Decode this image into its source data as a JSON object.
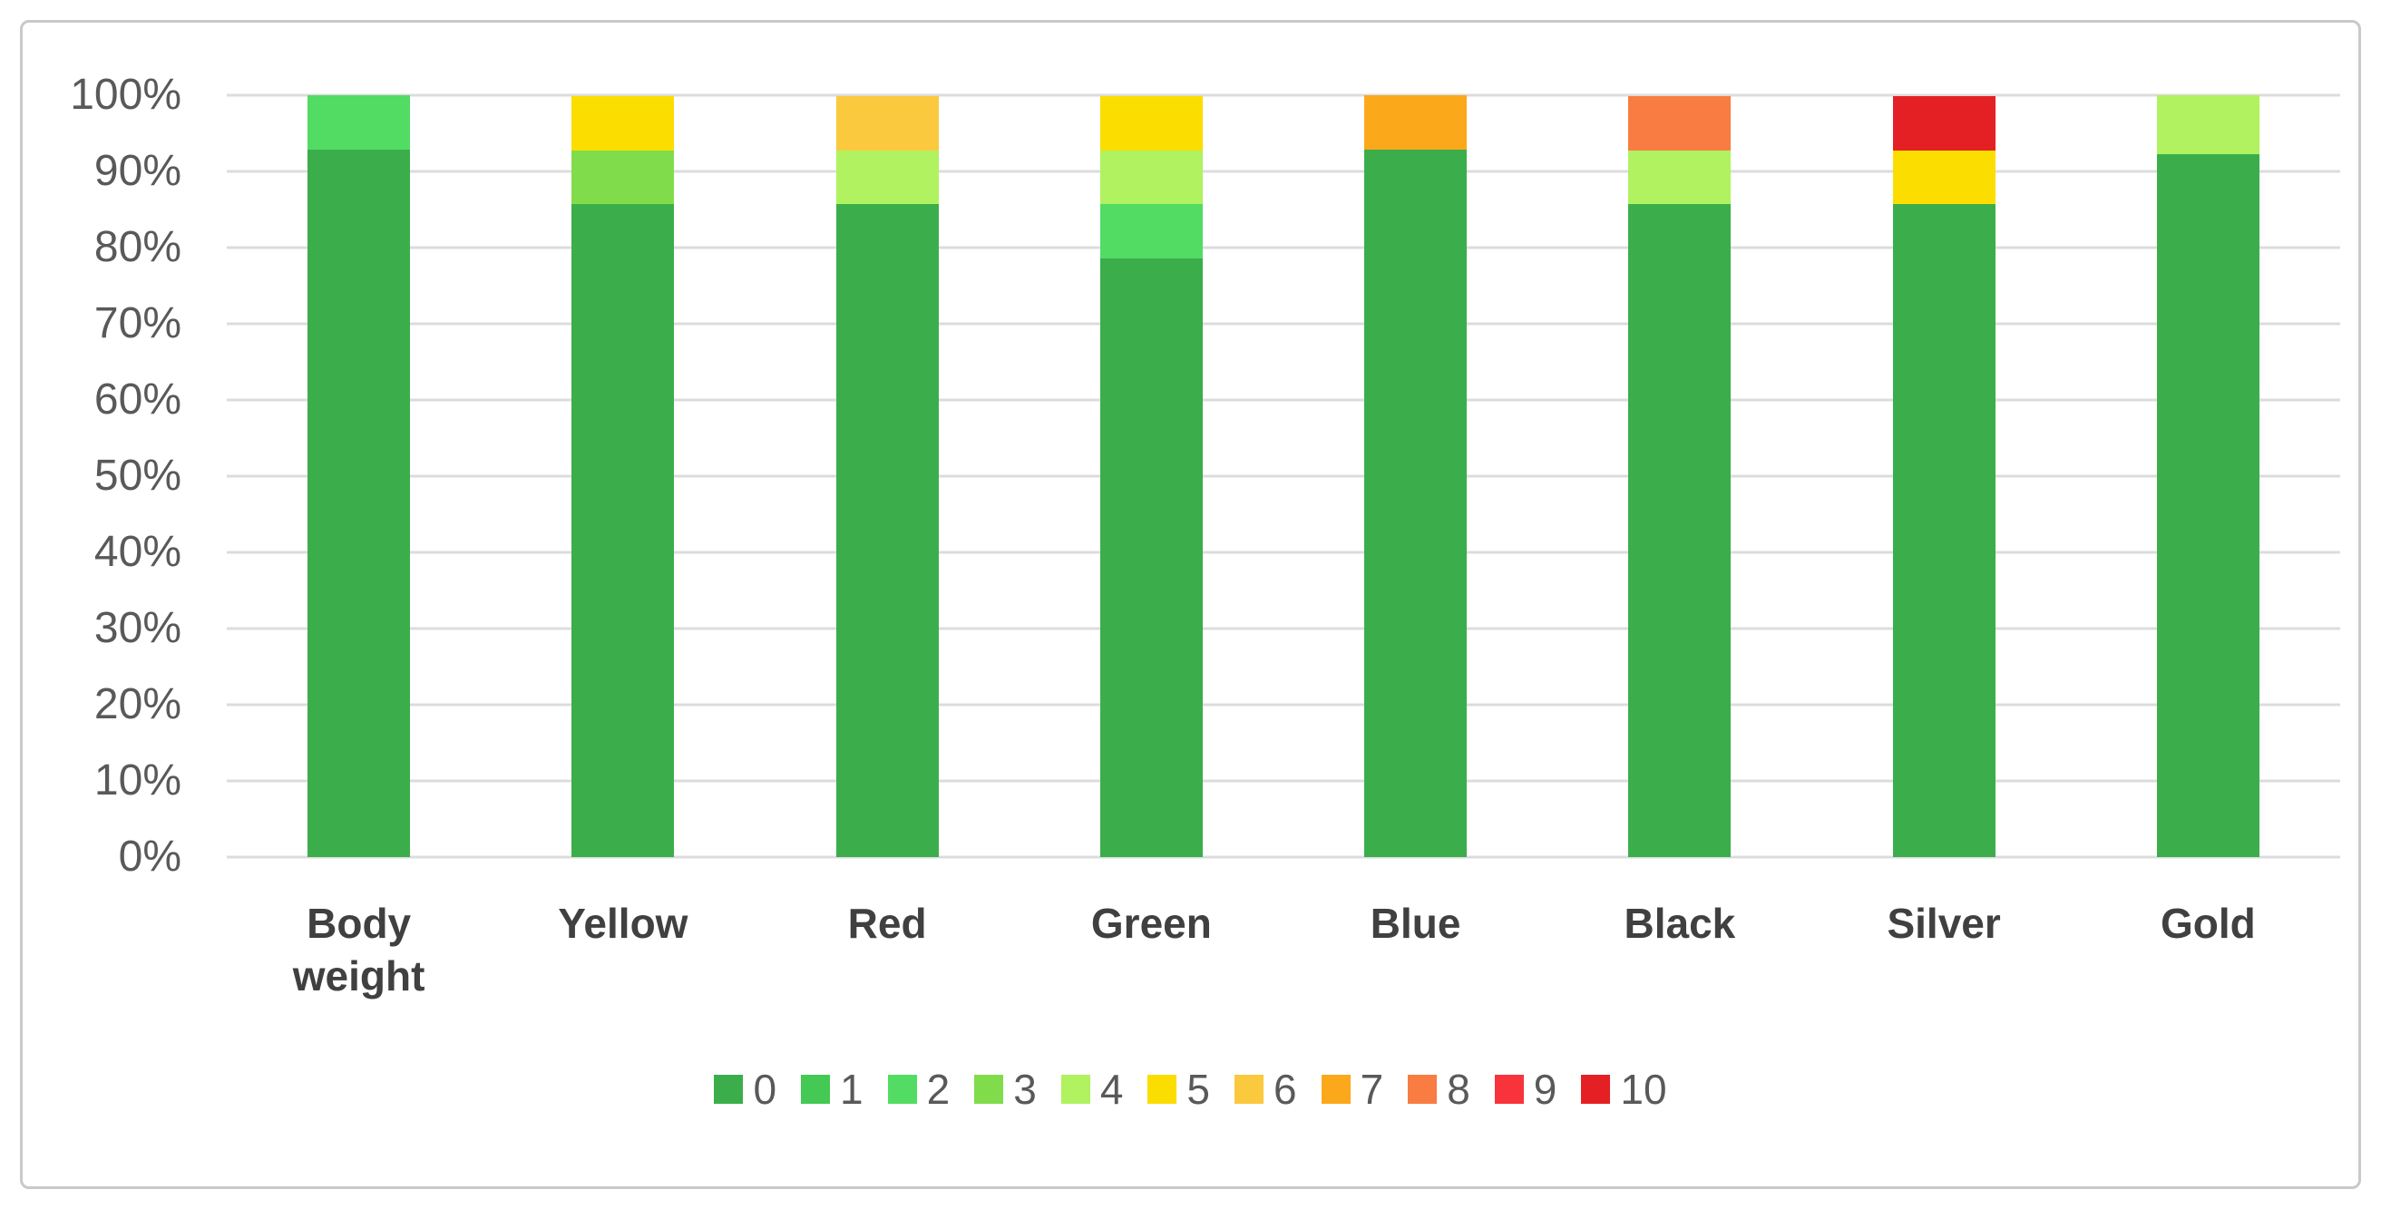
{
  "chart_data": {
    "type": "bar",
    "stacked": true,
    "units": "percent",
    "title": "",
    "xlabel": "",
    "ylabel": "",
    "ylim": [
      0,
      100
    ],
    "grid": true,
    "legend_position": "bottom",
    "yticks": [
      "0%",
      "10%",
      "20%",
      "30%",
      "40%",
      "50%",
      "60%",
      "70%",
      "80%",
      "90%",
      "100%"
    ],
    "categories": [
      "Body weight",
      "Yellow",
      "Red",
      "Green",
      "Blue",
      "Black",
      "Silver",
      "Gold"
    ],
    "series": [
      {
        "name": "0",
        "color": "#3bae4b",
        "values": [
          92.9,
          85.7,
          85.7,
          78.6,
          92.9,
          85.7,
          85.7,
          92.3
        ]
      },
      {
        "name": "1",
        "color": "#43c954",
        "values": [
          0,
          0,
          0,
          0,
          0,
          0,
          0,
          0
        ]
      },
      {
        "name": "2",
        "color": "#52dc63",
        "values": [
          7.1,
          0,
          0,
          7.1,
          0,
          0,
          0,
          0
        ]
      },
      {
        "name": "3",
        "color": "#81dc4b",
        "values": [
          0,
          7.1,
          0,
          0,
          0,
          0,
          0,
          0
        ]
      },
      {
        "name": "4",
        "color": "#b0f260",
        "values": [
          0,
          0,
          7.1,
          7.1,
          0,
          7.1,
          0,
          7.7
        ]
      },
      {
        "name": "5",
        "color": "#fcdd00",
        "values": [
          0,
          7.1,
          0,
          7.1,
          0,
          0,
          7.1,
          0
        ]
      },
      {
        "name": "6",
        "color": "#fbc93d",
        "values": [
          0,
          0,
          7.1,
          0,
          0,
          0,
          0,
          0
        ]
      },
      {
        "name": "7",
        "color": "#fba81b",
        "values": [
          0,
          0,
          0,
          0,
          7.1,
          0,
          0,
          0
        ]
      },
      {
        "name": "8",
        "color": "#f97c42",
        "values": [
          0,
          0,
          0,
          0,
          0,
          7.1,
          0,
          0
        ]
      },
      {
        "name": "9",
        "color": "#f8333b",
        "values": [
          0,
          0,
          0,
          0,
          0,
          0,
          0,
          0
        ]
      },
      {
        "name": "10",
        "color": "#e52025",
        "values": [
          0,
          0,
          0,
          0,
          0,
          0,
          7.1,
          0
        ]
      }
    ]
  },
  "styles": {
    "gridline_color": "#dcdcdc",
    "border_color": "#c9c9c9",
    "tick_text_color": "#595959",
    "category_text_color": "#404040",
    "legend_text_color": "#595959",
    "background": "#ffffff"
  }
}
